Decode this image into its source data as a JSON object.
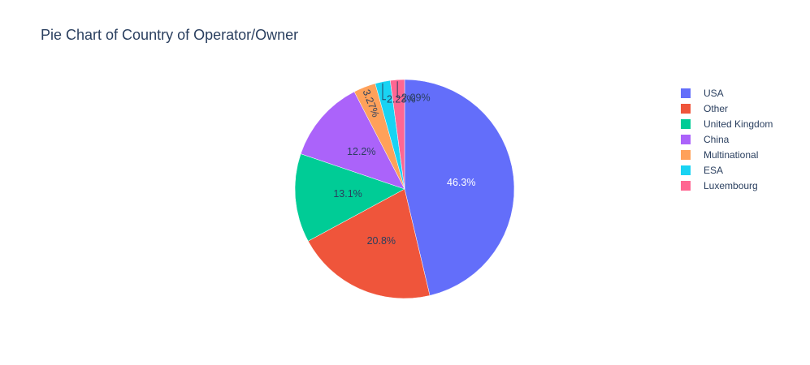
{
  "chart_data": {
    "type": "pie",
    "title": "Pie Chart of Country of Operator/Owner",
    "categories": [
      "USA",
      "Other",
      "United Kingdom",
      "China",
      "Multinational",
      "ESA",
      "Luxembourg"
    ],
    "values": [
      46.3,
      20.8,
      13.1,
      12.2,
      3.27,
      2.23,
      2.09
    ],
    "value_labels": [
      "46.3%",
      "20.8%",
      "13.1%",
      "12.2%",
      "3.27%",
      "2.23%",
      "2.09%"
    ],
    "colors": [
      "#636efa",
      "#ef553b",
      "#00cc96",
      "#ab63fa",
      "#ffa15a",
      "#19d3f3",
      "#ff6692"
    ],
    "direction": "clockwise",
    "start_angle": "12 o'clock",
    "legend_position": "top-right"
  }
}
